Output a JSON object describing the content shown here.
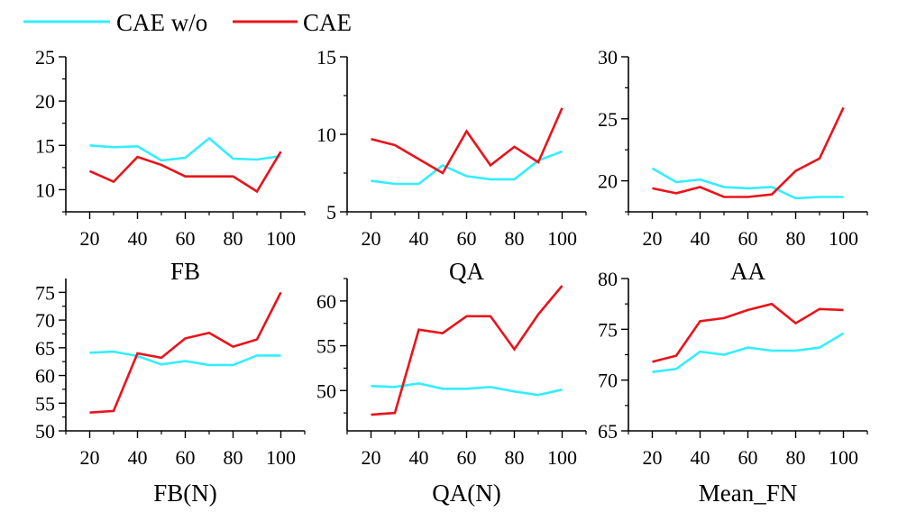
{
  "legend": {
    "position": "top-left",
    "items": [
      {
        "label": "CAE w/o",
        "color": "#33eeff"
      },
      {
        "label": "CAE",
        "color": "#e8141c"
      }
    ]
  },
  "chart_data": [
    {
      "type": "line",
      "title": "",
      "xlabel": "FB",
      "ylabel": "",
      "x": [
        20,
        30,
        40,
        50,
        60,
        70,
        80,
        90,
        100
      ],
      "xticks": [
        20,
        40,
        60,
        80,
        100
      ],
      "xminor": [
        10,
        30,
        50,
        70,
        90,
        110
      ],
      "xlim": [
        10,
        110
      ],
      "yticks": [
        10,
        15,
        20,
        25
      ],
      "yminor": [
        7.5,
        12.5,
        17.5,
        22.5
      ],
      "ylim": [
        7.5,
        25
      ],
      "series": [
        {
          "name": "CAE w/o",
          "color": "#33eeff",
          "values": [
            15.0,
            14.8,
            14.9,
            13.3,
            13.6,
            15.8,
            13.5,
            13.4,
            13.8
          ]
        },
        {
          "name": "CAE",
          "color": "#e8141c",
          "values": [
            12.1,
            10.9,
            13.7,
            12.8,
            11.5,
            11.5,
            11.5,
            9.8,
            14.3
          ]
        }
      ]
    },
    {
      "type": "line",
      "title": "",
      "xlabel": "QA",
      "ylabel": "",
      "x": [
        20,
        30,
        40,
        50,
        60,
        70,
        80,
        90,
        100
      ],
      "xticks": [
        20,
        40,
        60,
        80,
        100
      ],
      "xminor": [
        10,
        30,
        50,
        70,
        90,
        110
      ],
      "xlim": [
        10,
        110
      ],
      "yticks": [
        5,
        10,
        15
      ],
      "yminor": [
        7.5,
        12.5
      ],
      "ylim": [
        5,
        15
      ],
      "series": [
        {
          "name": "CAE w/o",
          "color": "#33eeff",
          "values": [
            7.0,
            6.8,
            6.8,
            8.0,
            7.3,
            7.1,
            7.1,
            8.3,
            8.9
          ]
        },
        {
          "name": "CAE",
          "color": "#e8141c",
          "values": [
            9.7,
            9.3,
            8.4,
            7.5,
            10.2,
            8.0,
            9.2,
            8.2,
            11.7
          ]
        }
      ]
    },
    {
      "type": "line",
      "title": "",
      "xlabel": "AA",
      "ylabel": "",
      "x": [
        20,
        30,
        40,
        50,
        60,
        70,
        80,
        90,
        100
      ],
      "xticks": [
        20,
        40,
        60,
        80,
        100
      ],
      "xminor": [
        10,
        30,
        50,
        70,
        90,
        110
      ],
      "xlim": [
        10,
        110
      ],
      "yticks": [
        20,
        25,
        30
      ],
      "yminor": [
        17.5,
        22.5,
        27.5
      ],
      "ylim": [
        17.5,
        30
      ],
      "series": [
        {
          "name": "CAE w/o",
          "color": "#33eeff",
          "values": [
            21.0,
            19.9,
            20.1,
            19.5,
            19.4,
            19.5,
            18.6,
            18.7,
            18.7
          ]
        },
        {
          "name": "CAE",
          "color": "#e8141c",
          "values": [
            19.4,
            19.0,
            19.5,
            18.7,
            18.7,
            18.9,
            20.8,
            21.8,
            25.9
          ]
        }
      ]
    },
    {
      "type": "line",
      "title": "",
      "xlabel": "FB(N)",
      "ylabel": "",
      "x": [
        20,
        30,
        40,
        50,
        60,
        70,
        80,
        90,
        100
      ],
      "xticks": [
        20,
        40,
        60,
        80,
        100
      ],
      "xminor": [
        10,
        30,
        50,
        70,
        90,
        110
      ],
      "xlim": [
        10,
        110
      ],
      "yticks": [
        50,
        55,
        60,
        65,
        70,
        75
      ],
      "yminor": [
        52.5,
        57.5,
        62.5,
        67.5,
        72.5
      ],
      "ylim": [
        50,
        77.5
      ],
      "series": [
        {
          "name": "CAE w/o",
          "color": "#33eeff",
          "values": [
            64.1,
            64.3,
            63.5,
            62.0,
            62.6,
            61.9,
            61.9,
            63.6,
            63.6
          ]
        },
        {
          "name": "CAE",
          "color": "#e8141c",
          "values": [
            53.3,
            53.6,
            64.0,
            63.2,
            66.7,
            67.7,
            65.2,
            66.5,
            75.0
          ]
        }
      ]
    },
    {
      "type": "line",
      "title": "",
      "xlabel": "QA(N)",
      "ylabel": "",
      "x": [
        20,
        30,
        40,
        50,
        60,
        70,
        80,
        90,
        100
      ],
      "xticks": [
        20,
        40,
        60,
        80,
        100
      ],
      "xminor": [
        10,
        30,
        50,
        70,
        90,
        110
      ],
      "xlim": [
        10,
        110
      ],
      "yticks": [
        50,
        55,
        60
      ],
      "yminor": [
        47.5,
        52.5,
        57.5,
        62.5
      ],
      "ylim": [
        45.5,
        62.5
      ],
      "series": [
        {
          "name": "CAE w/o",
          "color": "#33eeff",
          "values": [
            50.5,
            50.4,
            50.8,
            50.2,
            50.2,
            50.4,
            49.9,
            49.5,
            50.1
          ]
        },
        {
          "name": "CAE",
          "color": "#e8141c",
          "values": [
            47.3,
            47.5,
            56.8,
            56.4,
            58.3,
            58.3,
            54.6,
            58.5,
            61.7
          ]
        }
      ]
    },
    {
      "type": "line",
      "title": "",
      "xlabel": "Mean_FN",
      "ylabel": "",
      "x": [
        20,
        30,
        40,
        50,
        60,
        70,
        80,
        90,
        100
      ],
      "xticks": [
        20,
        40,
        60,
        80,
        100
      ],
      "xminor": [
        10,
        30,
        50,
        70,
        90,
        110
      ],
      "xlim": [
        10,
        110
      ],
      "yticks": [
        65,
        70,
        75,
        80
      ],
      "yminor": [
        67.5,
        72.5,
        77.5
      ],
      "ylim": [
        65,
        80
      ],
      "series": [
        {
          "name": "CAE w/o",
          "color": "#33eeff",
          "values": [
            70.8,
            71.1,
            72.8,
            72.5,
            73.2,
            72.9,
            72.9,
            73.2,
            74.6
          ]
        },
        {
          "name": "CAE",
          "color": "#e8141c",
          "values": [
            71.8,
            72.4,
            75.8,
            76.1,
            76.9,
            77.5,
            75.6,
            77.0,
            76.9
          ]
        }
      ]
    }
  ]
}
